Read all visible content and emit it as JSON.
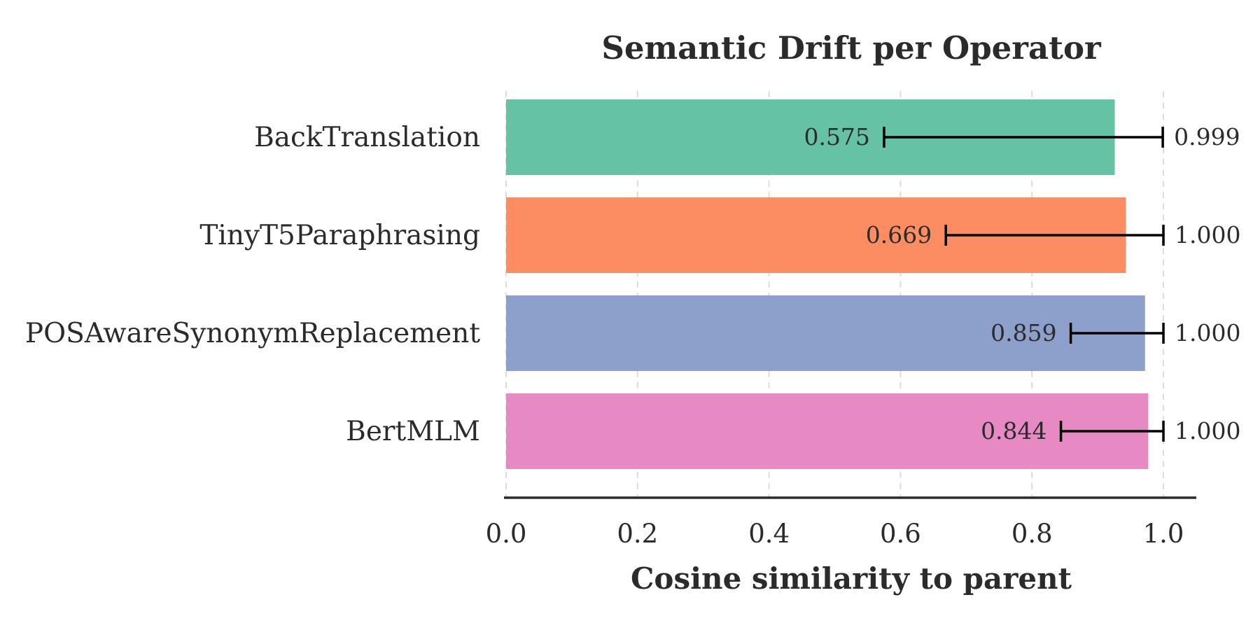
{
  "chart_data": {
    "type": "bar",
    "orientation": "horizontal",
    "title": "Semantic Drift per Operator",
    "xlabel": "Cosine similarity to parent",
    "ylabel": "",
    "xlim": [
      0.0,
      1.05
    ],
    "xticks": [
      "0.0",
      "0.2",
      "0.4",
      "0.6",
      "0.8",
      "1.0"
    ],
    "grid": "vertical dashed",
    "categories": [
      "BackTranslation",
      "TinyT5Paraphrasing",
      "POSAwareSynonymReplacement",
      "BertMLM"
    ],
    "values": [
      0.926,
      0.943,
      0.972,
      0.977
    ],
    "error_min": [
      0.575,
      0.669,
      0.859,
      0.844
    ],
    "error_max": [
      0.999,
      1.0,
      1.0,
      1.0
    ],
    "min_labels": [
      "0.575",
      "0.669",
      "0.859",
      "0.844"
    ],
    "max_labels": [
      "0.999",
      "1.000",
      "1.000",
      "1.000"
    ],
    "colors": [
      "#66c2a5",
      "#fc8d62",
      "#8da0cb",
      "#e78ac3"
    ]
  }
}
